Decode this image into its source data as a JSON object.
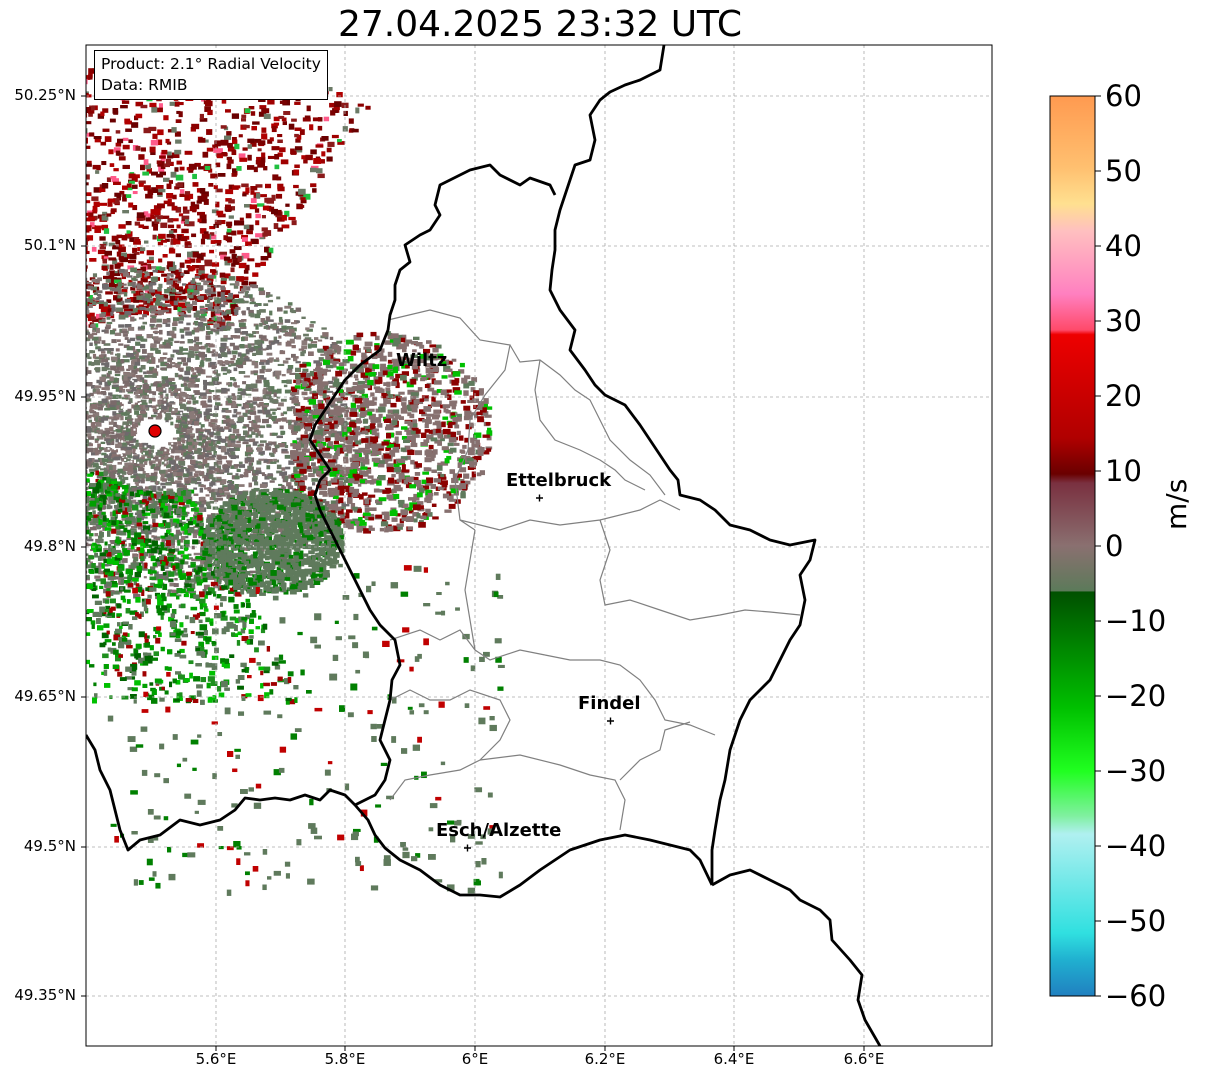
{
  "title": "27.04.2025 23:32 UTC",
  "info": {
    "product": "Product: 2.1° Radial Velocity",
    "data": "Data: RMIB"
  },
  "axes": {
    "y_labels": [
      "50.25°N",
      "50.1°N",
      "49.95°N",
      "49.8°N",
      "49.65°N",
      "49.5°N",
      "49.35°N"
    ],
    "x_labels": [
      "5.6°E",
      "5.8°E",
      "6°E",
      "6.2°E",
      "6.4°E",
      "6.6°E"
    ]
  },
  "cities": [
    {
      "name": "Wiltz",
      "lon": 5.91,
      "lat": 49.97
    },
    {
      "name": "Ettelbruck",
      "lon": 6.1,
      "lat": 49.85
    },
    {
      "name": "Findel",
      "lon": 6.21,
      "lat": 49.63
    },
    {
      "name": "Esch/Alzette",
      "lon": 5.99,
      "lat": 49.5
    }
  ],
  "radar_site": {
    "lon": 5.505,
    "lat": 49.915
  },
  "colorbar": {
    "unit": "m/s",
    "ticks": [
      "60",
      "50",
      "40",
      "30",
      "20",
      "10",
      "0",
      "−10",
      "−20",
      "−30",
      "−40",
      "−50",
      "−60"
    ]
  }
}
